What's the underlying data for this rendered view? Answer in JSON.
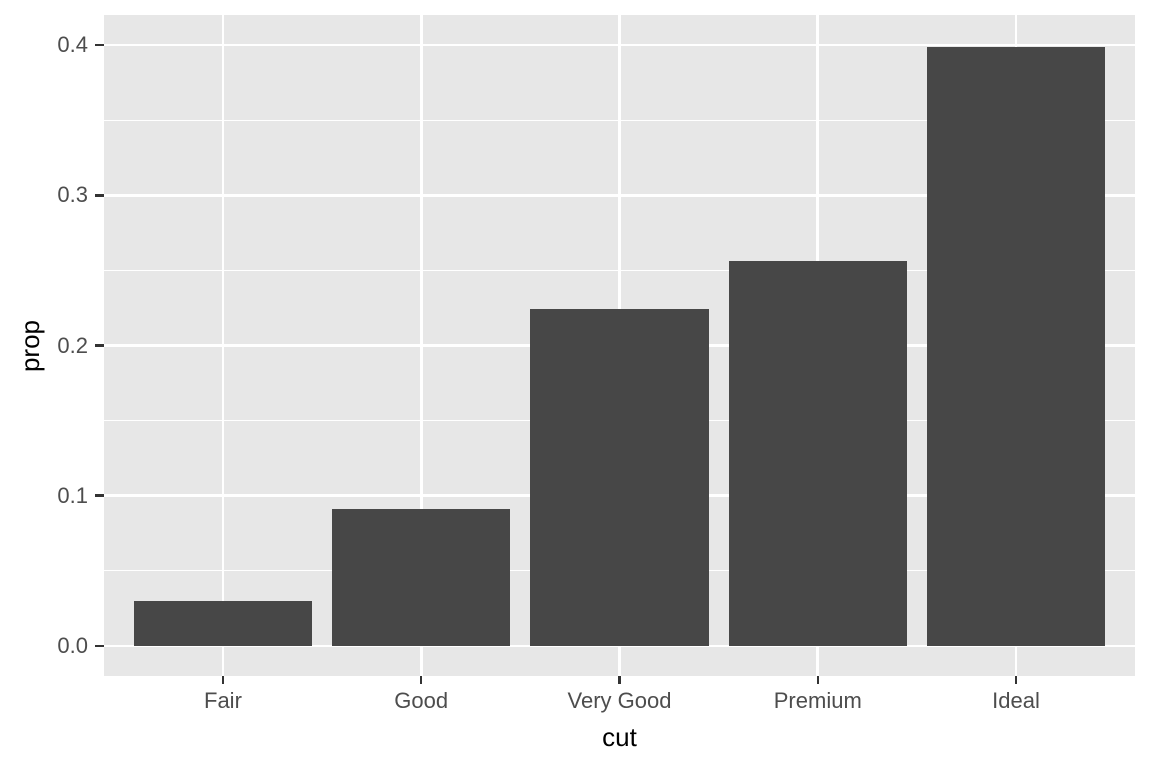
{
  "chart_data": {
    "type": "bar",
    "title": "",
    "xlabel": "cut",
    "ylabel": "prop",
    "categories": [
      "Fair",
      "Good",
      "Very Good",
      "Premium",
      "Ideal"
    ],
    "values": [
      0.03,
      0.091,
      0.224,
      0.256,
      0.399
    ],
    "y_ticks": [
      0.0,
      0.1,
      0.2,
      0.3,
      0.4
    ],
    "y_tick_labels": [
      "0.0",
      "0.1",
      "0.2",
      "0.3",
      "0.4"
    ],
    "y_minor_ticks": [
      0.05,
      0.15,
      0.25,
      0.35
    ],
    "ylim": [
      -0.02,
      0.42
    ],
    "x_expand": 0.6,
    "bar_rel_width": 0.9,
    "grid": true,
    "legend": "none",
    "style": {
      "page_bg": "#FFFFFF",
      "panel_bg": "#E7E7E7",
      "grid_color": "#FFFFFF",
      "bar_fill": "#474747",
      "tick_label_color": "#4D4D4D",
      "axis_title_color": "#000000",
      "tick_mark_color": "#333333"
    }
  }
}
